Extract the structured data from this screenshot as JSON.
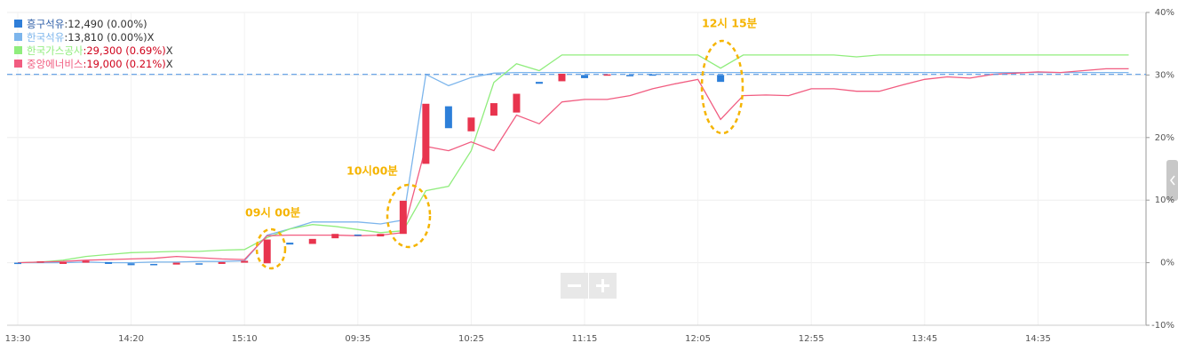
{
  "chart_data": {
    "type": "stock-compare",
    "categories": [
      "13:30",
      null,
      null,
      null,
      null,
      "14:20",
      null,
      null,
      null,
      null,
      "15:10",
      null,
      null,
      null,
      null,
      "09:35",
      null,
      null,
      null,
      null,
      "10:25",
      null,
      null,
      null,
      null,
      "11:15",
      null,
      null,
      null,
      null,
      "12:05",
      null,
      null,
      null,
      null,
      "12:55",
      null,
      null,
      null,
      null,
      "13:45",
      null,
      null,
      null,
      null,
      "14:35",
      null,
      null,
      null,
      null
    ],
    "ylim": [
      -10,
      40
    ],
    "yticks": [
      {
        "value": -10,
        "label": "-10%"
      },
      {
        "value": 0,
        "label": "0%"
      },
      {
        "value": 10,
        "label": "10%"
      },
      {
        "value": 20,
        "label": "20%"
      },
      {
        "value": 30,
        "label": "30%"
      },
      {
        "value": 40,
        "label": "40%"
      }
    ],
    "grid": true,
    "legend_close": "X",
    "reference_value": 30.1,
    "reference_color": "#5b9be6",
    "candles": {
      "name": "흥구석유",
      "quote": ":12,490 (0.00%)",
      "color": "#2f7ed8",
      "quote_color": "#333333",
      "up_color": "#e8344e",
      "down_color": "#2d7fd9",
      "open": [
        0,
        0,
        -0.2,
        0,
        0.1,
        -0.1,
        -0.2,
        -0.3,
        -0.1,
        -0.2,
        0,
        -0.1,
        3.2,
        3.0,
        3.9,
        4.5,
        4.2,
        4.6,
        15.8,
        25.0,
        21.0,
        23.5,
        24.0,
        28.9,
        29.0,
        30.0,
        30.0,
        30.0,
        30.1,
        null,
        null,
        30.0,
        null,
        null,
        null,
        null,
        null,
        null,
        null,
        null,
        null,
        null,
        null,
        null,
        null,
        null,
        null,
        null,
        null,
        null
      ],
      "close": [
        -0.2,
        0.2,
        0.1,
        0.3,
        -0.2,
        -0.4,
        -0.4,
        0,
        -0.3,
        0.1,
        0.3,
        3.7,
        2.9,
        3.8,
        4.6,
        4.3,
        4.6,
        9.9,
        25.4,
        21.5,
        23.2,
        25.5,
        27.0,
        28.6,
        30.2,
        29.5,
        30.1,
        29.9,
        30.0,
        null,
        null,
        28.9,
        null,
        null,
        null,
        null,
        null,
        null,
        null,
        null,
        null,
        null,
        null,
        null,
        null,
        null,
        null,
        null,
        null,
        null
      ]
    },
    "series": [
      {
        "name": "한국석유",
        "quote": ":13,810 (0.00%)",
        "color": "#7cb5ec",
        "quote_color": "#333333",
        "values": [
          0,
          0,
          0,
          0.1,
          0,
          0,
          0.1,
          0.1,
          0.2,
          0.2,
          0.3,
          4.4,
          5.4,
          6.5,
          6.5,
          6.5,
          6.2,
          6.8,
          30.1,
          28.3,
          29.6,
          30.3,
          30.4,
          30.4,
          30.4,
          30.4,
          30.4,
          30.4,
          30.4,
          30.4,
          30.4,
          30.4,
          30.4,
          30.4,
          30.4,
          30.4,
          30.4,
          30.4,
          30.4,
          30.4,
          30.4,
          30.4,
          30.4,
          30.4,
          30.4,
          30.4,
          30.4,
          30.4,
          30.4,
          30.4
        ]
      },
      {
        "name": "한국가스공사",
        "quote": ":29,300 (0.69%)",
        "color": "#90ed7d",
        "quote_color": "#d0021b",
        "values": [
          0,
          0.1,
          0.4,
          1.0,
          1.3,
          1.6,
          1.7,
          1.8,
          1.8,
          2.0,
          2.1,
          4.0,
          5.4,
          6.1,
          5.8,
          5.3,
          4.8,
          5.1,
          11.5,
          12.2,
          17.9,
          28.8,
          31.8,
          30.7,
          33.2,
          33.2,
          33.2,
          33.2,
          33.2,
          33.2,
          33.2,
          31.1,
          33.2,
          33.2,
          33.2,
          33.2,
          33.2,
          32.9,
          33.2,
          33.2,
          33.2,
          33.2,
          33.2,
          33.2,
          33.2,
          33.2,
          33.2,
          33.2,
          33.2,
          33.2
        ]
      },
      {
        "name": "중앙에너비스",
        "quote": ":19,000 (0.21%)",
        "color": "#f15c80",
        "quote_color": "#d0021b",
        "values": [
          0,
          0.1,
          0.2,
          0.4,
          0.5,
          0.6,
          0.7,
          1.0,
          0.8,
          0.6,
          0.5,
          4.3,
          4.4,
          4.4,
          4.4,
          4.3,
          4.4,
          4.8,
          18.6,
          17.9,
          19.3,
          17.9,
          23.6,
          22.2,
          25.7,
          26.1,
          26.1,
          26.7,
          27.8,
          28.6,
          29.3,
          22.9,
          26.7,
          26.8,
          26.7,
          27.8,
          27.8,
          27.4,
          27.4,
          28.4,
          29.3,
          29.7,
          29.5,
          30.1,
          30.3,
          30.5,
          30.4,
          30.7,
          31.0,
          31.0
        ]
      }
    ],
    "annotations": [
      "09시 00분",
      "10시00분",
      "12시 15분"
    ]
  }
}
